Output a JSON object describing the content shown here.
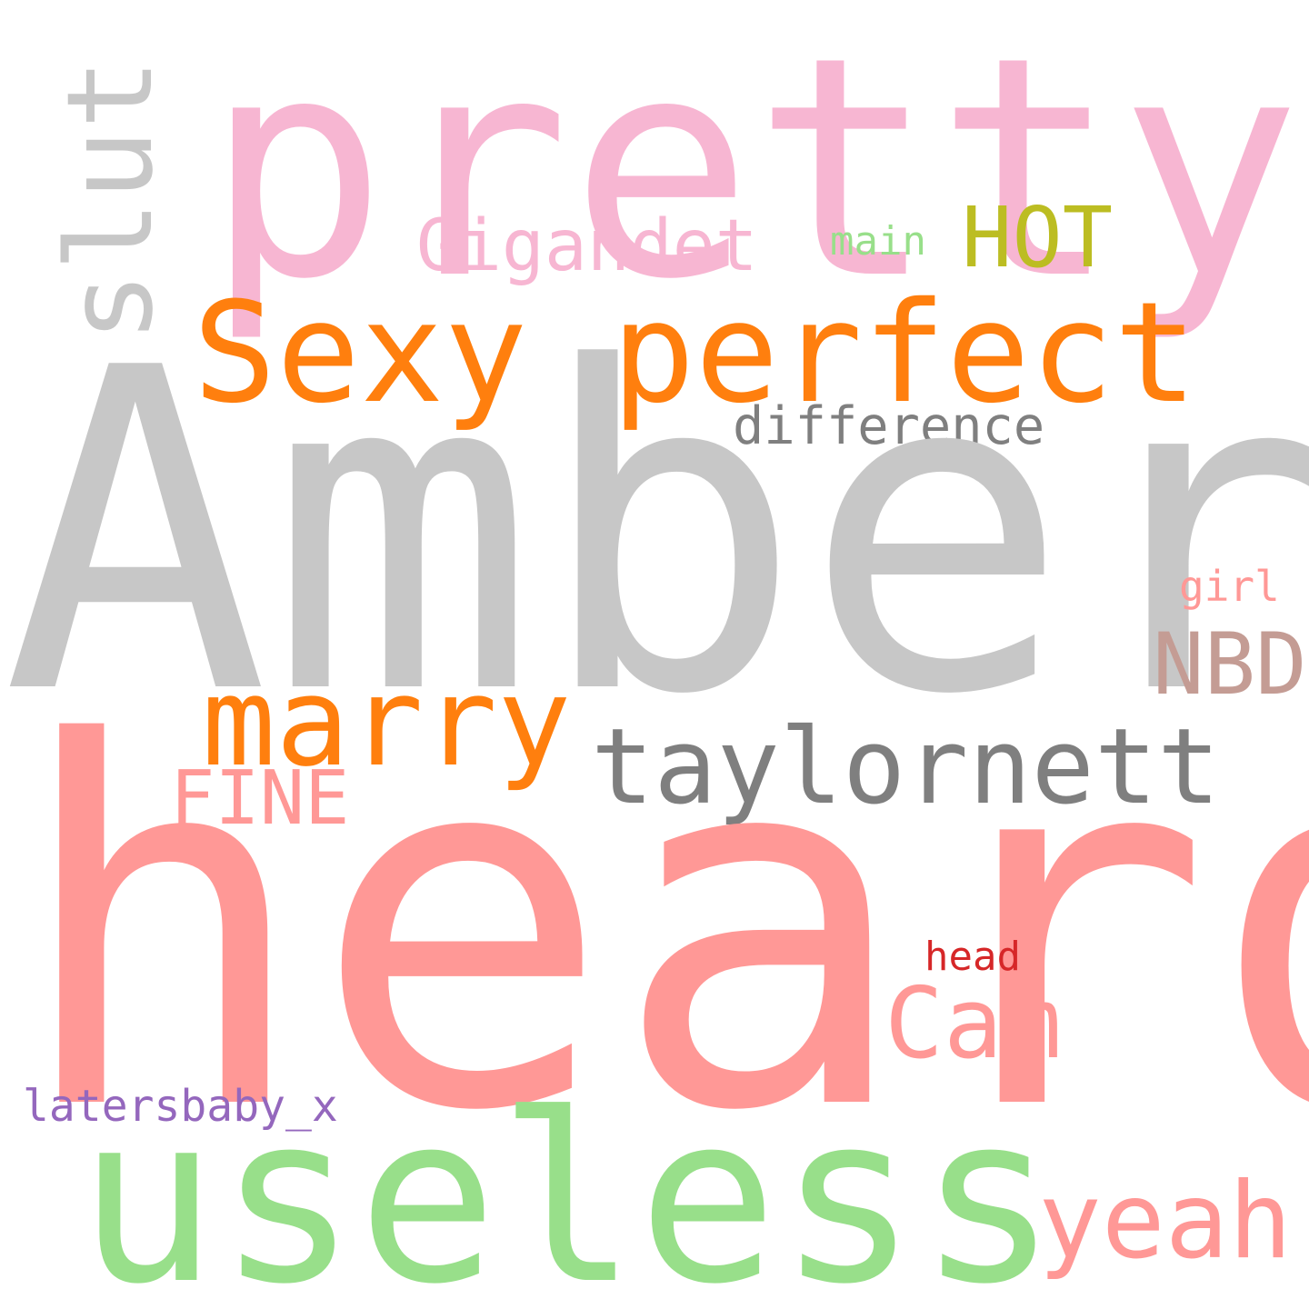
{
  "words": [
    {
      "id": "pretty",
      "text": "pretty",
      "color": "#f7b6d2"
    },
    {
      "id": "slut",
      "text": "slut",
      "color": "#c7c7c7"
    },
    {
      "id": "gigandet",
      "text": "Gigandet",
      "color": "#f7b6d2"
    },
    {
      "id": "main",
      "text": "main",
      "color": "#98df8a"
    },
    {
      "id": "hot",
      "text": "HOT",
      "color": "#bcbd22"
    },
    {
      "id": "sexy_perfect",
      "text": "Sexy perfect",
      "color": "#ff7f0e"
    },
    {
      "id": "difference",
      "text": "difference",
      "color": "#7f7f7f"
    },
    {
      "id": "amber",
      "text": "Amber",
      "color": "#c7c7c7"
    },
    {
      "id": "girl",
      "text": "girl",
      "color": "#ff9896"
    },
    {
      "id": "nbd",
      "text": "NBD",
      "color": "#c49c94"
    },
    {
      "id": "marry",
      "text": "marry",
      "color": "#ff7f0e"
    },
    {
      "id": "taylornett",
      "text": "taylornett",
      "color": "#7f7f7f"
    },
    {
      "id": "fine",
      "text": "FINE",
      "color": "#ff9896"
    },
    {
      "id": "heard",
      "text": "heard",
      "color": "#ff9896"
    },
    {
      "id": "head",
      "text": "head",
      "color": "#d62728"
    },
    {
      "id": "cam",
      "text": "Cam",
      "color": "#ff9896"
    },
    {
      "id": "latersbaby_x",
      "text": "latersbaby_x",
      "color": "#9467bd"
    },
    {
      "id": "useless",
      "text": "useless",
      "color": "#98df8a"
    },
    {
      "id": "yeah",
      "text": "yeah",
      "color": "#ff9896"
    }
  ]
}
